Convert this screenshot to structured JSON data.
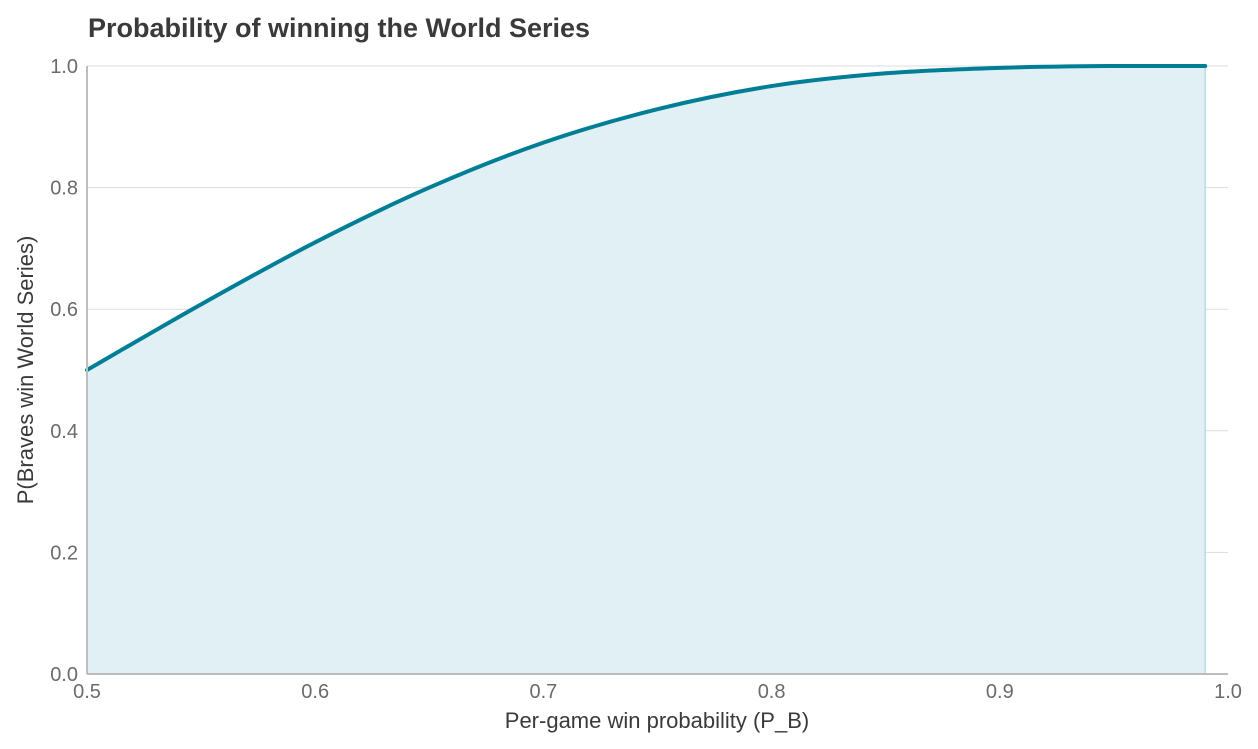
{
  "chart_data": {
    "type": "area",
    "title": "Probability of winning the World Series",
    "xlabel": "Per-game win probability (P_B)",
    "ylabel": "P(Braves win World Series)",
    "xlim": [
      0.5,
      1.0
    ],
    "ylim": [
      0.0,
      1.0
    ],
    "x_ticks": [
      "0.5",
      "0.6",
      "0.7",
      "0.8",
      "0.9",
      "1.0"
    ],
    "y_ticks": [
      "0.0",
      "0.2",
      "0.4",
      "0.6",
      "0.8",
      "1.0"
    ],
    "grid": "horizontal",
    "legend": "none",
    "series": [
      {
        "color": "#007e96",
        "fill_color": "#e0f0f4",
        "x": [
          0.5,
          0.55,
          0.6,
          0.65,
          0.7,
          0.75,
          0.8,
          0.85,
          0.9,
          0.95,
          0.99
        ],
        "values": [
          0.5,
          0.608,
          0.71,
          0.8,
          0.874,
          0.929,
          0.967,
          0.988,
          0.997,
          1.0,
          1.0
        ]
      }
    ]
  }
}
